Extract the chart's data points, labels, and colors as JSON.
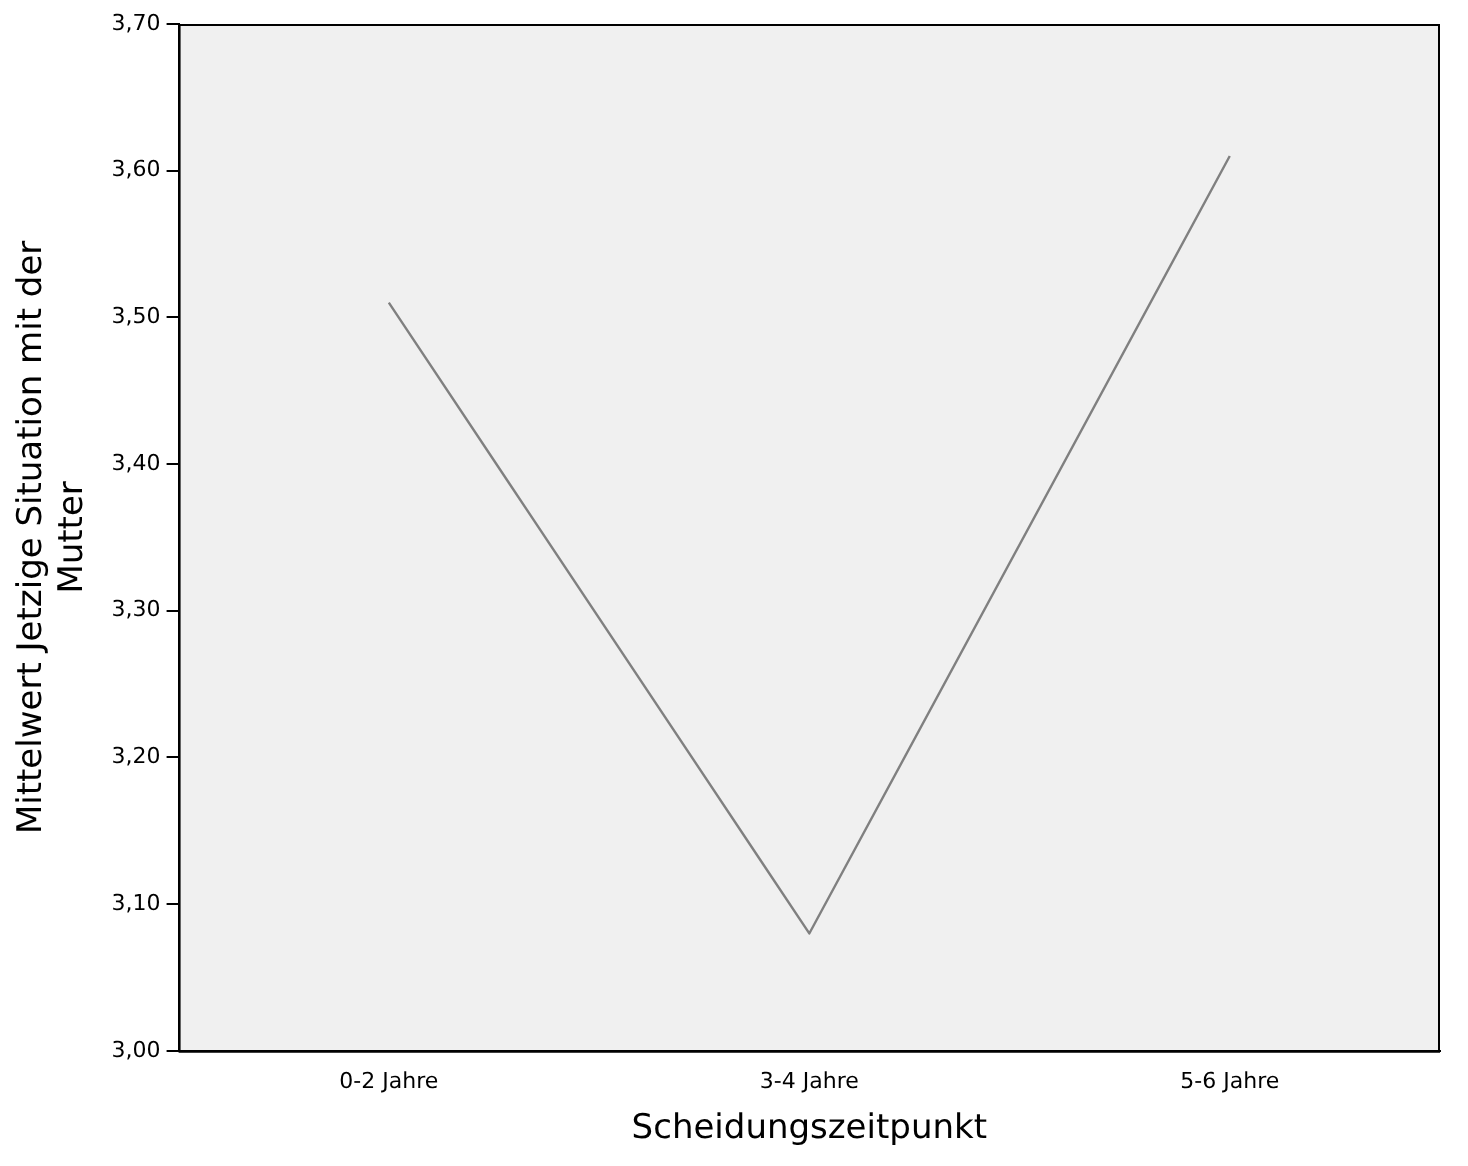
{
  "chart_data": {
    "type": "line",
    "xlabel": "Scheidungszeitpunkt",
    "ylabel": "Mittelwert Jetzige Situation mit der Mutter",
    "categories": [
      "0-2 Jahre",
      "3-4 Jahre",
      "5-6 Jahre"
    ],
    "series": [
      {
        "color": "#808080",
        "values": [
          3.51,
          3.08,
          3.61
        ]
      }
    ],
    "ylim": [
      3.0,
      3.7
    ],
    "yticks": [
      {
        "value": 3.0,
        "label": "3,00"
      },
      {
        "value": 3.1,
        "label": "3,10"
      },
      {
        "value": 3.2,
        "label": "3,20"
      },
      {
        "value": 3.3,
        "label": "3,30"
      },
      {
        "value": 3.4,
        "label": "3,40"
      },
      {
        "value": 3.5,
        "label": "3,50"
      },
      {
        "value": 3.6,
        "label": "3,60"
      },
      {
        "value": 3.7,
        "label": "3,70"
      }
    ],
    "grid": false,
    "legend": false,
    "marker": "none",
    "line_style": "solid"
  }
}
